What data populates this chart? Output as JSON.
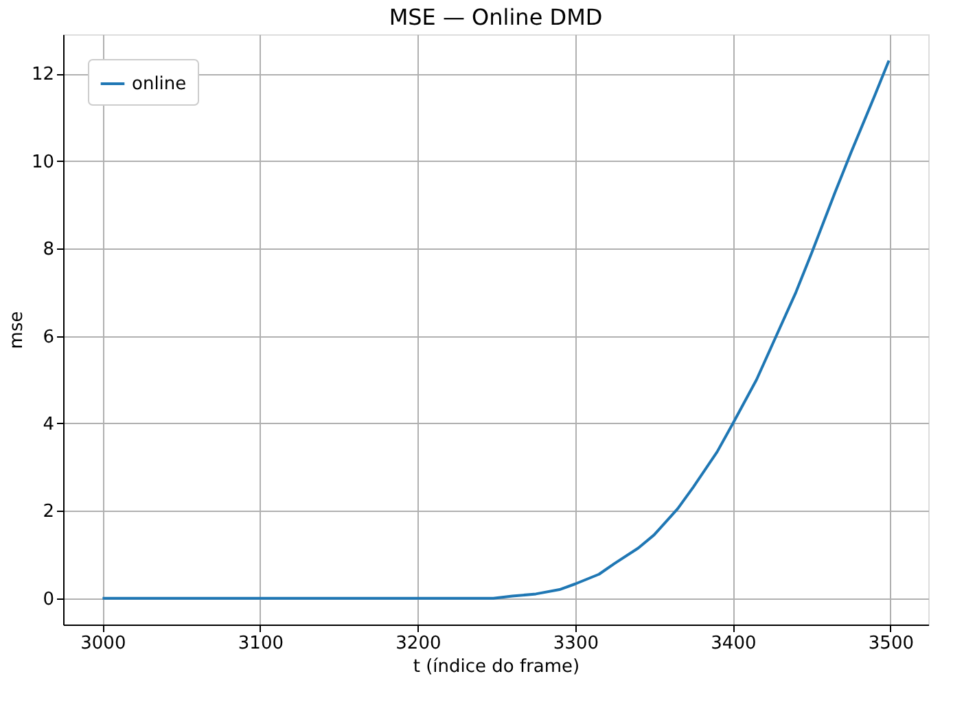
{
  "chart_data": {
    "type": "line",
    "title": "MSE — Online DMD",
    "xlabel": "t (índice do frame)",
    "ylabel": "mse",
    "xlim": [
      2975,
      3524
    ],
    "xticks": [
      3000,
      3100,
      3200,
      3300,
      3400,
      3500
    ],
    "ylim": [
      -0.6,
      12.9
    ],
    "yticks": [
      0,
      2,
      4,
      6,
      8,
      10,
      12
    ],
    "grid": true,
    "legend": "top left",
    "line_style": "solid",
    "marker": "none",
    "series": [
      {
        "name": "online",
        "color": "#1f77b4",
        "x": [
          3000,
          3100,
          3200,
          3248,
          3260,
          3275,
          3290,
          3300,
          3315,
          3325,
          3340,
          3350,
          3365,
          3375,
          3390,
          3400,
          3415,
          3425,
          3440,
          3450,
          3465,
          3475,
          3490,
          3499
        ],
        "values": [
          0,
          0,
          0,
          0,
          0.05,
          0.1,
          0.2,
          0.33,
          0.55,
          0.8,
          1.15,
          1.45,
          2.05,
          2.55,
          3.35,
          4.0,
          5.0,
          5.8,
          7.0,
          7.9,
          9.3,
          10.2,
          11.5,
          12.3
        ]
      }
    ]
  }
}
